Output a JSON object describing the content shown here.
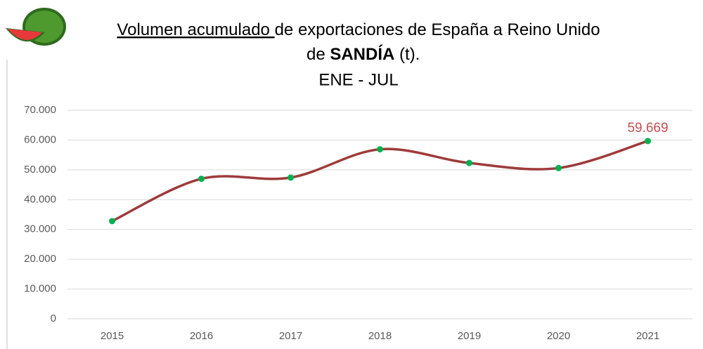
{
  "chart_data": {
    "type": "line",
    "title_lines": [
      [
        "Volumen acumulado ",
        "de exportaciones de España a Reino Unido"
      ],
      [
        "de ",
        "SANDÍA",
        " (t)."
      ],
      [
        "ENE - JUL"
      ]
    ],
    "categories": [
      "2015",
      "2016",
      "2017",
      "2018",
      "2019",
      "2020",
      "2021"
    ],
    "series": [
      {
        "color": "#9e3b3a",
        "marker_color": "#00b050",
        "values": [
          32800,
          47000,
          47400,
          56900,
          52300,
          50600,
          59669
        ],
        "value_labels": [
          null,
          null,
          null,
          null,
          null,
          null,
          "59.669"
        ]
      }
    ],
    "ylim": [
      0,
      70000
    ],
    "yticks": [
      0,
      {
        "value": 10000,
        "label": "10.000"
      },
      {
        "value": 20000,
        "label": "20.000"
      },
      {
        "value": 30000,
        "label": "30.000"
      },
      {
        "value": 40000,
        "label": "40.000"
      },
      {
        "value": 50000,
        "label": "50.000"
      },
      {
        "value": 60000,
        "label": "60.000"
      },
      {
        "value": 70000,
        "label": "70.000"
      }
    ],
    "grid": true
  }
}
